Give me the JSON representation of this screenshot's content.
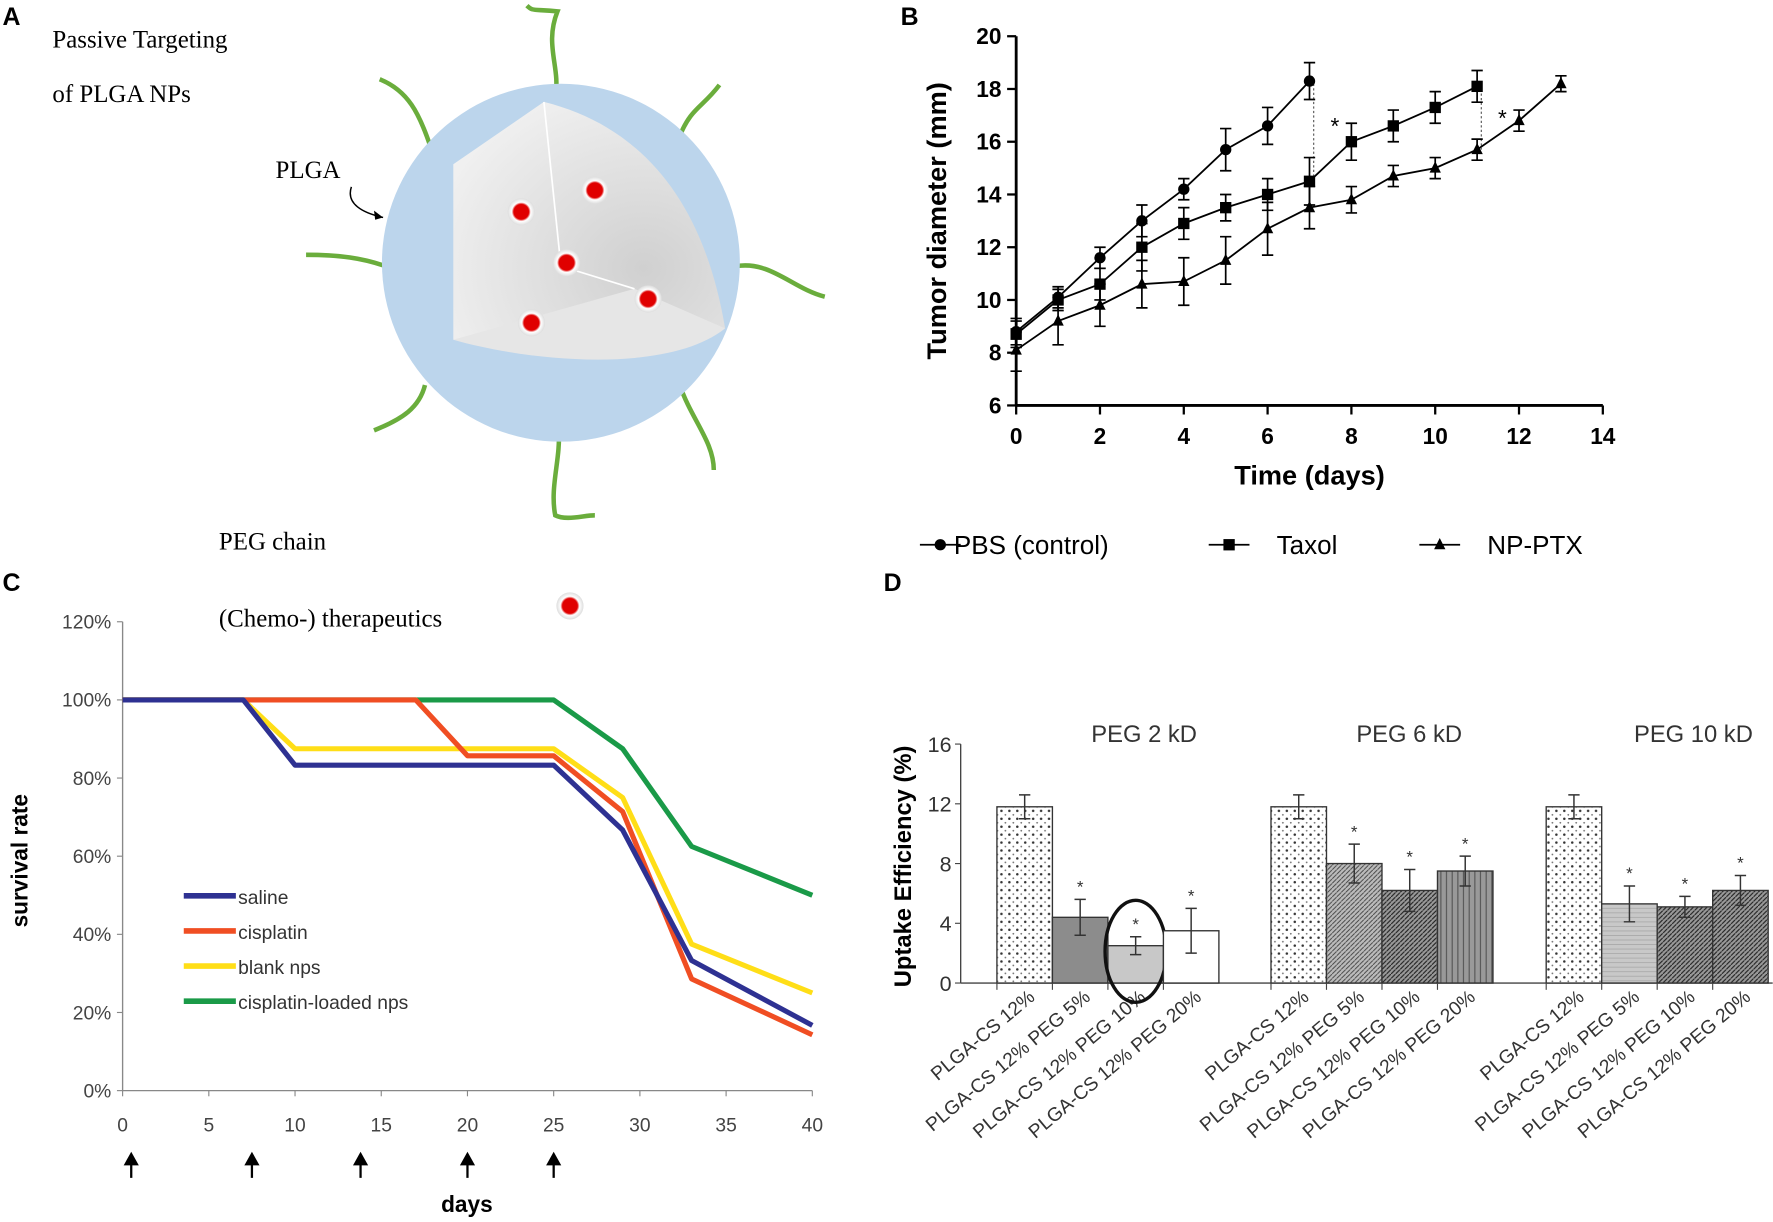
{
  "panels": {
    "a": "A",
    "b": "B",
    "c": "C",
    "d": "D"
  },
  "diagram": {
    "title_line1": "Passive   Targeting",
    "title_line2": "of PLGA NPs",
    "plga_label": "PLGA",
    "peg_label": "PEG chain",
    "drug_label": "(Chemo-) therapeutics",
    "colors": {
      "shell": "#b9d3ea",
      "peg": "#6aad3c",
      "drug": "#e00000"
    }
  },
  "chart_data": [
    {
      "type": "line",
      "id": "B",
      "xlabel": "Time (days)",
      "ylabel": "Tumor diameter (mm)",
      "xlim": [
        0,
        14
      ],
      "ylim": [
        6,
        20
      ],
      "xticks": [
        "0",
        "2",
        "4",
        "6",
        "8",
        "10",
        "12",
        "14"
      ],
      "yticks": [
        "6",
        "8",
        "10",
        "12",
        "14",
        "16",
        "18",
        "20"
      ],
      "annotations": [
        "*",
        "*"
      ],
      "series": [
        {
          "name": "PBS (control)",
          "marker": "circle",
          "x": [
            0,
            1,
            2,
            3,
            4,
            5,
            6,
            7
          ],
          "y": [
            8.8,
            10.1,
            11.6,
            13.0,
            14.2,
            15.7,
            16.6,
            18.3
          ],
          "err": [
            0.5,
            0.4,
            0.4,
            0.6,
            0.4,
            0.8,
            0.7,
            0.7
          ]
        },
        {
          "name": "Taxol",
          "marker": "square",
          "x": [
            0,
            1,
            2,
            3,
            4,
            5,
            6,
            7,
            8,
            9,
            10,
            11
          ],
          "y": [
            8.7,
            10.0,
            10.6,
            12.0,
            12.9,
            13.5,
            14.0,
            14.5,
            16.0,
            16.6,
            17.3,
            18.1
          ],
          "err": [
            0.5,
            0.4,
            0.6,
            0.9,
            0.6,
            0.5,
            0.6,
            0.9,
            0.7,
            0.6,
            0.6,
            0.6
          ]
        },
        {
          "name": "NP-PTX",
          "marker": "triangle",
          "x": [
            0,
            1,
            2,
            3,
            4,
            5,
            6,
            7,
            8,
            9,
            10,
            11,
            12,
            13
          ],
          "y": [
            8.1,
            9.2,
            9.8,
            10.6,
            10.7,
            11.5,
            12.7,
            13.5,
            13.8,
            14.7,
            15.0,
            15.7,
            16.8,
            18.2
          ],
          "err": [
            0.8,
            0.9,
            0.8,
            0.9,
            0.9,
            0.9,
            1.0,
            0.8,
            0.5,
            0.4,
            0.4,
            0.4,
            0.4,
            0.3
          ]
        }
      ]
    },
    {
      "type": "line",
      "id": "C",
      "xlabel": "days",
      "ylabel": "survival rate",
      "xlim": [
        0,
        40
      ],
      "ylim": [
        0,
        120
      ],
      "xticks": [
        "0",
        "5",
        "10",
        "15",
        "20",
        "25",
        "30",
        "35",
        "40"
      ],
      "yticks": [
        "0%",
        "20%",
        "40%",
        "60%",
        "80%",
        "100%",
        "120%"
      ],
      "dosing_days": [
        0.5,
        7.5,
        13.8,
        20,
        25
      ],
      "legend": "left-center",
      "series": [
        {
          "name": "saline",
          "color": "#2e3192",
          "x": [
            0,
            7,
            10,
            25,
            29,
            33,
            40
          ],
          "y": [
            100,
            100,
            83.3,
            83.3,
            66.7,
            33.3,
            16.7
          ]
        },
        {
          "name": "cisplatin",
          "color": "#f04e23",
          "x": [
            0,
            17,
            20,
            25,
            29,
            33,
            40
          ],
          "y": [
            100,
            100,
            85.7,
            85.7,
            71.4,
            28.6,
            14.3
          ]
        },
        {
          "name": "blank nps",
          "color": "#ffde17",
          "x": [
            0,
            7,
            10,
            25,
            29,
            33,
            40
          ],
          "y": [
            100,
            100,
            87.5,
            87.5,
            75,
            37.5,
            25
          ]
        },
        {
          "name": "cisplatin-loaded nps",
          "color": "#1a9a48",
          "x": [
            0,
            25,
            29,
            33,
            40
          ],
          "y": [
            100,
            100,
            87.5,
            62.5,
            50
          ]
        }
      ]
    },
    {
      "type": "bar",
      "id": "D",
      "ylabel": "Uptake Efficiency (%)",
      "ylim": [
        0,
        16
      ],
      "yticks": [
        "0",
        "4",
        "8",
        "12",
        "16"
      ],
      "groups": [
        {
          "name": "PEG 2 kD",
          "categories": [
            "PLGA-CS 12%",
            "PLGA-CS 12% PEG 5%",
            "PLGA-CS 12% PEG 10%",
            "PLGA-CS 12% PEG 20%"
          ],
          "values": [
            11.8,
            4.4,
            2.5,
            3.5
          ],
          "err": [
            0.8,
            1.2,
            0.6,
            1.5
          ],
          "sig": [
            "",
            "*",
            "*",
            "*"
          ],
          "highlighted": 2
        },
        {
          "name": "PEG 6 kD",
          "categories": [
            "PLGA-CS 12%",
            "PLGA-CS 12% PEG 5%",
            "PLGA-CS 12% PEG 10%",
            "PLGA-CS 12% PEG 20%"
          ],
          "values": [
            11.8,
            8.0,
            6.2,
            7.5
          ],
          "err": [
            0.8,
            1.3,
            1.4,
            1.0
          ],
          "sig": [
            "",
            "*",
            "*",
            "*"
          ]
        },
        {
          "name": "PEG 10 kD",
          "categories": [
            "PLGA-CS 12%",
            "PLGA-CS 12% PEG 5%",
            "PLGA-CS 12% PEG 10%",
            "PLGA-CS 12% PEG 20%"
          ],
          "values": [
            11.8,
            5.3,
            5.1,
            6.2
          ],
          "err": [
            0.8,
            1.2,
            0.7,
            1.0
          ],
          "sig": [
            "",
            "*",
            "*",
            "*"
          ]
        }
      ]
    }
  ]
}
